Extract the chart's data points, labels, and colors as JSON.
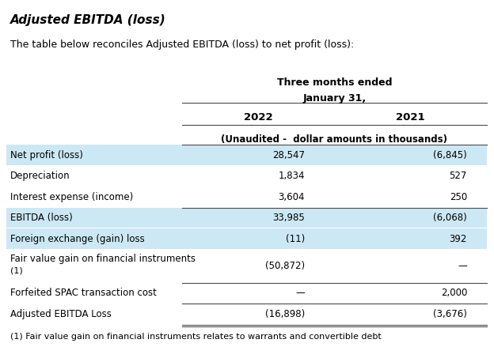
{
  "title": "Adjusted EBITDA (loss)",
  "subtitle": "The table below reconciles Adjusted EBITDA (loss) to net profit (loss):",
  "header1": "Three months ended",
  "header2": "January 31,",
  "col_headers": [
    "2022",
    "2021"
  ],
  "sub_header": "(Unaudited -  dollar amounts in thousands)",
  "rows": [
    {
      "label": "Net profit (loss)",
      "val2022": "28,547",
      "val2021": "(6,845)",
      "shaded": true,
      "top_border": true,
      "multiline": false
    },
    {
      "label": "Depreciation",
      "val2022": "1,834",
      "val2021": "527",
      "shaded": false,
      "top_border": false,
      "multiline": false
    },
    {
      "label": "Interest expense (income)",
      "val2022": "3,604",
      "val2021": "250",
      "shaded": false,
      "top_border": false,
      "multiline": false
    },
    {
      "label": "EBITDA (loss)",
      "val2022": "33,985",
      "val2021": "(6,068)",
      "shaded": true,
      "top_border": true,
      "multiline": false
    },
    {
      "label": "Foreign exchange (gain) loss",
      "val2022": "(11)",
      "val2021": "392",
      "shaded": true,
      "top_border": false,
      "multiline": false
    },
    {
      "label": "Fair value gain on financial instruments",
      "label2": "(1)",
      "val2022": "(50,872)",
      "val2021": "—",
      "shaded": false,
      "top_border": false,
      "multiline": true
    },
    {
      "label": "Forfeited SPAC transaction cost",
      "val2022": "—",
      "val2021": "2,000",
      "shaded": false,
      "top_border": true,
      "multiline": false
    },
    {
      "label": "Adjusted EBITDA Loss",
      "val2022": "(16,898)",
      "val2021": "(3,676)",
      "shaded": false,
      "top_border": true,
      "multiline": false
    }
  ],
  "footnote": "(1) Fair value gain on financial instruments relates to warrants and convertible debt",
  "shaded_color": "#cce8f4",
  "bg_color": "#ffffff",
  "text_color": "#000000",
  "border_color": "#4a4a4a",
  "fig_width": 6.24,
  "fig_height": 4.58,
  "dpi": 100
}
